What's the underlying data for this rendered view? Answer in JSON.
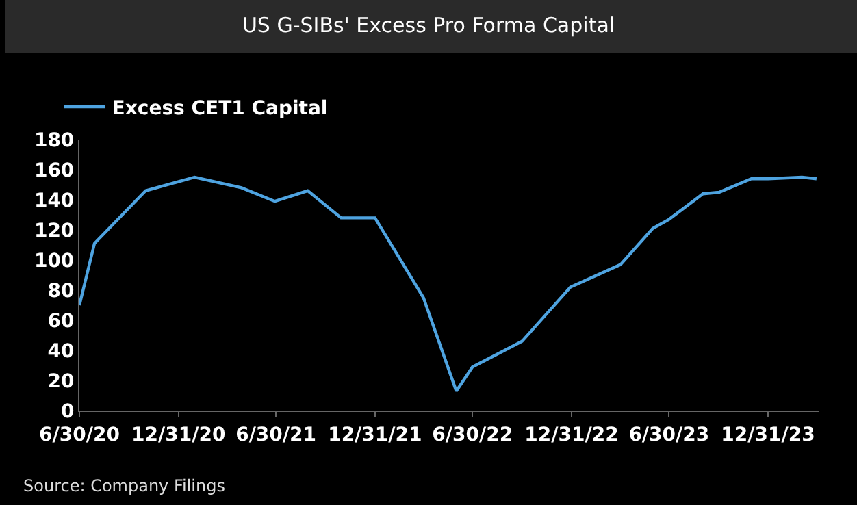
{
  "chart_data": {
    "type": "line",
    "title": "US G-SIBs' Excess Pro Forma Capital",
    "x": [
      "2020-06-30",
      "2020-07-28",
      "2020-10-31",
      "2021-01-30",
      "2021-04-27",
      "2021-06-28",
      "2021-08-28",
      "2021-10-29",
      "2021-12-31",
      "2022-03-31",
      "2022-05-31",
      "2022-06-30",
      "2022-09-30",
      "2022-12-29",
      "2023-04-01",
      "2023-05-31",
      "2023-06-30",
      "2023-09-01",
      "2023-10-01",
      "2023-11-30",
      "2023-12-31",
      "2024-03-03",
      "2024-03-30"
    ],
    "series": [
      {
        "name": "Excess CET1 Capital",
        "color": "#4ea3e0",
        "values": [
          70,
          111,
          146,
          155,
          148,
          139,
          146,
          128,
          128,
          75,
          13,
          29,
          46,
          82,
          97,
          121,
          127,
          144,
          145,
          154,
          154,
          155,
          154
        ]
      }
    ],
    "xlim": [
      "2020-06-30",
      "2024-04-03"
    ],
    "xticks": [
      {
        "value": "2020-06-30",
        "label": "6/30/20"
      },
      {
        "value": "2020-12-31",
        "label": "12/31/20"
      },
      {
        "value": "2021-06-30",
        "label": "6/30/21"
      },
      {
        "value": "2021-12-31",
        "label": "12/31/21"
      },
      {
        "value": "2022-06-30",
        "label": "6/30/22"
      },
      {
        "value": "2022-12-31",
        "label": "12/31/22"
      },
      {
        "value": "2023-06-30",
        "label": "6/30/23"
      },
      {
        "value": "2023-12-31",
        "label": "12/31/23"
      }
    ],
    "ylim": [
      0,
      180
    ],
    "yticks": [
      0,
      20,
      40,
      60,
      80,
      100,
      120,
      140,
      160,
      180
    ],
    "grid": false,
    "legend": "top left",
    "marker": "none",
    "line_style": "solid",
    "annotations": [
      "Source: Company Filings"
    ]
  }
}
